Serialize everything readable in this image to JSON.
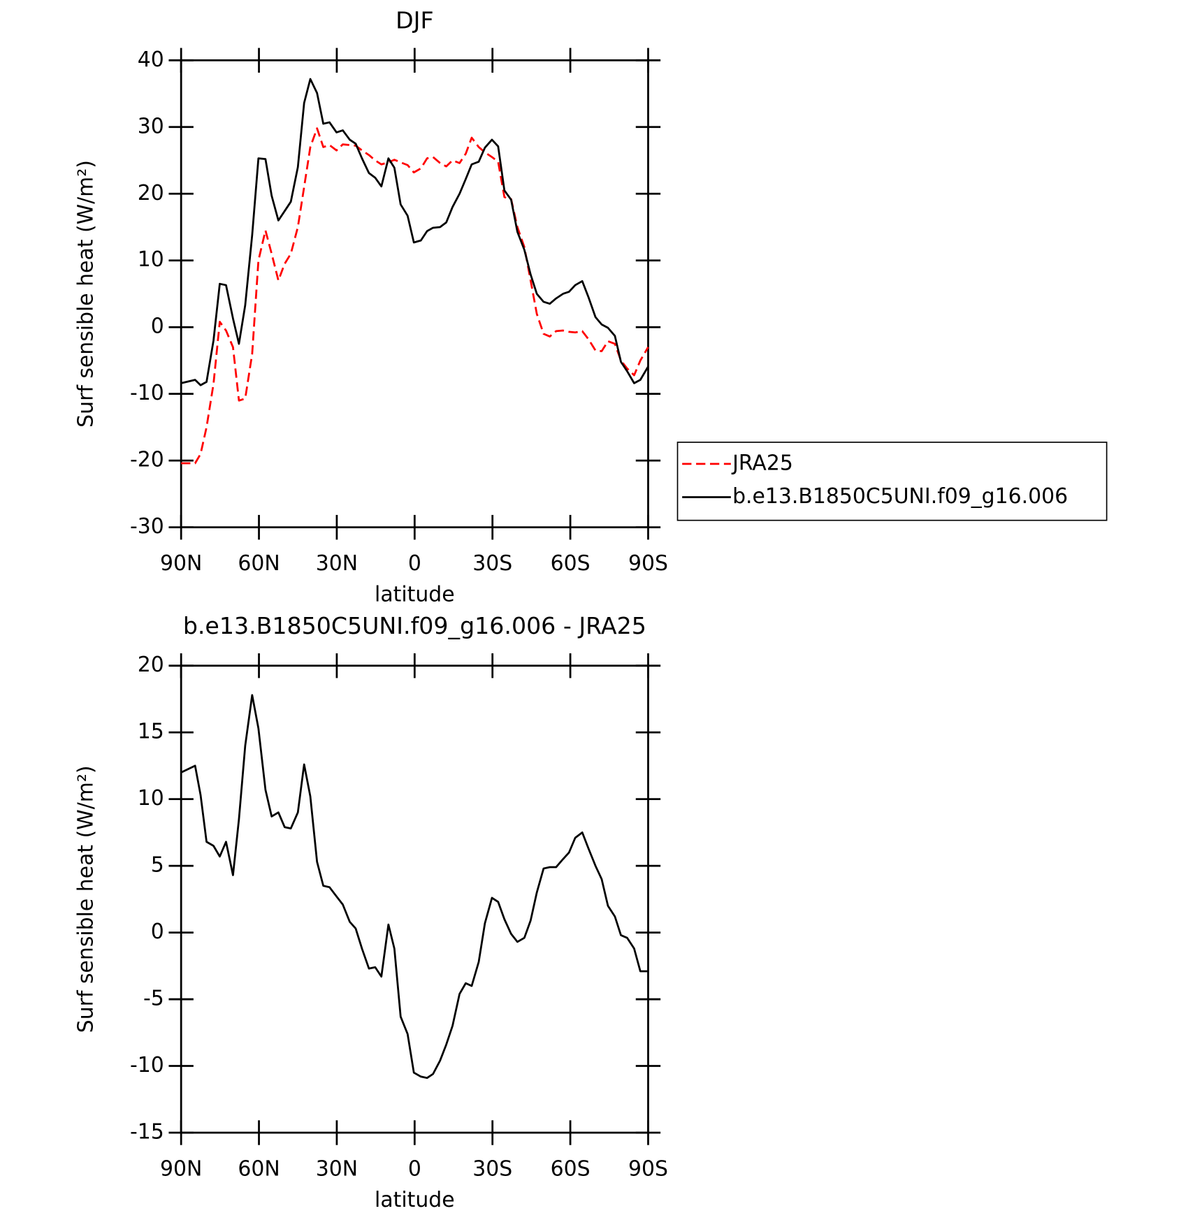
{
  "chart_data": [
    {
      "type": "line",
      "title": "DJF",
      "xlabel": "latitude",
      "ylabel": "Surf sensible heat (W/m²)",
      "x": [
        90,
        84.6,
        82.5,
        80.2,
        77.5,
        75.1,
        72.7,
        70,
        67.7,
        65.3,
        62.6,
        60.2,
        57.5,
        55.1,
        52.5,
        50.1,
        47.7,
        45,
        42.6,
        40.2,
        37.6,
        35.2,
        32.8,
        30.1,
        27.7,
        25,
        22.7,
        20.3,
        17.6,
        15.2,
        12.8,
        10.1,
        7.8,
        5.4,
        2.7,
        0.3,
        -2.4,
        -4.8,
        -7.1,
        -9.8,
        -12.2,
        -14.6,
        -17.3,
        -19.7,
        -22,
        -24.7,
        -27.1,
        -29.8,
        -32.2,
        -34.6,
        -37.2,
        -39.6,
        -42.3,
        -44.7,
        -47.1,
        -49.7,
        -52.1,
        -54.5,
        -57.2,
        -59.5,
        -61.9,
        -64.6,
        -67,
        -69.7,
        -72.1,
        -74.5,
        -77.2,
        -79.5,
        -81.9,
        -84.6,
        -87,
        -90
      ],
      "series": [
        {
          "name": "JRA25",
          "color": "#ff0000",
          "dash": "dashed",
          "values": [
            -20.4,
            -20.4,
            -19,
            -15,
            -8.5,
            0.8,
            -0.5,
            -3,
            -11,
            -10.7,
            -4,
            10,
            14.5,
            11,
            7,
            9.5,
            11,
            15,
            21,
            27,
            29.8,
            27,
            27.3,
            26.5,
            27.4,
            27.3,
            27.2,
            26.5,
            25.8,
            25,
            24.4,
            24.7,
            25.1,
            24.7,
            24.3,
            23.2,
            23.8,
            25.3,
            25.5,
            24.6,
            24.1,
            25,
            24.6,
            26,
            28.4,
            27,
            26.2,
            25.5,
            24.8,
            19.5,
            19.2,
            15,
            12,
            7,
            2,
            -1,
            -1.4,
            -0.6,
            -0.5,
            -0.7,
            -0.8,
            -0.6,
            -1.8,
            -3.5,
            -3.6,
            -2.1,
            -2.5,
            -5,
            -6.2,
            -7.2,
            -5,
            -3
          ]
        },
        {
          "name": "b.e13.B1850C5UNI.f09_g16.006",
          "color": "#000000",
          "dash": "solid",
          "values": [
            -8.4,
            -7.9,
            -8.7,
            -8.2,
            -2.0,
            6.5,
            6.3,
            1.3,
            -2.5,
            3.3,
            13.8,
            25.3,
            25.2,
            19.7,
            16.0,
            17.4,
            18.8,
            24.0,
            33.6,
            37.2,
            35.1,
            30.5,
            30.7,
            29.2,
            29.5,
            28.1,
            27.5,
            25.3,
            23.1,
            22.4,
            21.1,
            25.3,
            23.9,
            18.4,
            16.7,
            12.7,
            13.0,
            14.4,
            14.9,
            15.0,
            15.7,
            18.0,
            20.0,
            22.2,
            24.4,
            24.8,
            26.9,
            28.1,
            27.1,
            20.5,
            19.1,
            14.3,
            11.6,
            7.9,
            5.0,
            3.8,
            3.5,
            4.3,
            5.0,
            5.3,
            6.3,
            6.9,
            4.5,
            1.5,
            0.4,
            -0.1,
            -1.3,
            -5.2,
            -6.6,
            -8.4,
            -7.9,
            -5.9
          ]
        }
      ],
      "xlim": [
        90,
        -90
      ],
      "xticks": [
        {
          "value": 90,
          "label": "90N"
        },
        {
          "value": 60,
          "label": "60N"
        },
        {
          "value": 30,
          "label": "30N"
        },
        0,
        {
          "value": -30,
          "label": "30S"
        },
        {
          "value": -60,
          "label": "60S"
        },
        {
          "value": -90,
          "label": "90S"
        }
      ],
      "ylim": [
        -30,
        40
      ],
      "yticks": [
        -30,
        -20,
        -10,
        0,
        10,
        20,
        30,
        40
      ],
      "legend": "right"
    },
    {
      "type": "line",
      "title": "b.e13.B1850C5UNI.f09_g16.006 - JRA25",
      "xlabel": "latitude",
      "ylabel": "Surf sensible heat (W/m²)",
      "x": [
        90,
        84.6,
        82.5,
        80.2,
        77.5,
        75.1,
        72.7,
        70,
        67.7,
        65.3,
        62.6,
        60.2,
        57.5,
        55.1,
        52.5,
        50.1,
        47.7,
        45,
        42.6,
        40.2,
        37.6,
        35.2,
        32.8,
        30.1,
        27.7,
        25,
        22.7,
        20.3,
        17.6,
        15.2,
        12.8,
        10.1,
        7.8,
        5.4,
        2.7,
        0.3,
        -2.4,
        -4.8,
        -7.1,
        -9.8,
        -12.2,
        -14.6,
        -17.3,
        -19.7,
        -22,
        -24.7,
        -27.1,
        -29.8,
        -32.2,
        -34.6,
        -37.2,
        -39.6,
        -42.3,
        -44.7,
        -47.1,
        -49.7,
        -52.1,
        -54.5,
        -57.2,
        -59.5,
        -61.9,
        -64.6,
        -67,
        -69.7,
        -72.1,
        -74.5,
        -77.2,
        -79.5,
        -81.9,
        -84.6,
        -87,
        -90
      ],
      "series": [
        {
          "color": "#000000",
          "dash": "solid",
          "values": [
            12.0,
            12.5,
            10.3,
            6.8,
            6.5,
            5.7,
            6.8,
            4.3,
            8.5,
            14.0,
            17.8,
            15.3,
            10.7,
            8.7,
            9.0,
            7.9,
            7.8,
            9.0,
            12.6,
            10.2,
            5.3,
            3.5,
            3.4,
            2.7,
            2.1,
            0.8,
            0.3,
            -1.2,
            -2.7,
            -2.6,
            -3.3,
            0.6,
            -1.2,
            -6.3,
            -7.6,
            -10.5,
            -10.8,
            -10.9,
            -10.6,
            -9.6,
            -8.4,
            -7.0,
            -4.6,
            -3.8,
            -4.0,
            -2.2,
            0.7,
            2.6,
            2.3,
            1.0,
            -0.1,
            -0.7,
            -0.4,
            0.9,
            3.0,
            4.8,
            4.9,
            4.9,
            5.5,
            6.0,
            7.1,
            7.5,
            6.3,
            5.0,
            4.0,
            2.0,
            1.2,
            -0.2,
            -0.4,
            -1.2,
            -2.9,
            -2.9
          ]
        }
      ],
      "xlim": [
        90,
        -90
      ],
      "xticks": [
        {
          "value": 90,
          "label": "90N"
        },
        {
          "value": 60,
          "label": "60N"
        },
        {
          "value": 30,
          "label": "30N"
        },
        0,
        {
          "value": -30,
          "label": "30S"
        },
        {
          "value": -60,
          "label": "60S"
        },
        {
          "value": -90,
          "label": "90S"
        }
      ],
      "ylim": [
        -15,
        20
      ],
      "yticks": [
        -15,
        -10,
        -5,
        0,
        5,
        10,
        15,
        20
      ]
    }
  ]
}
